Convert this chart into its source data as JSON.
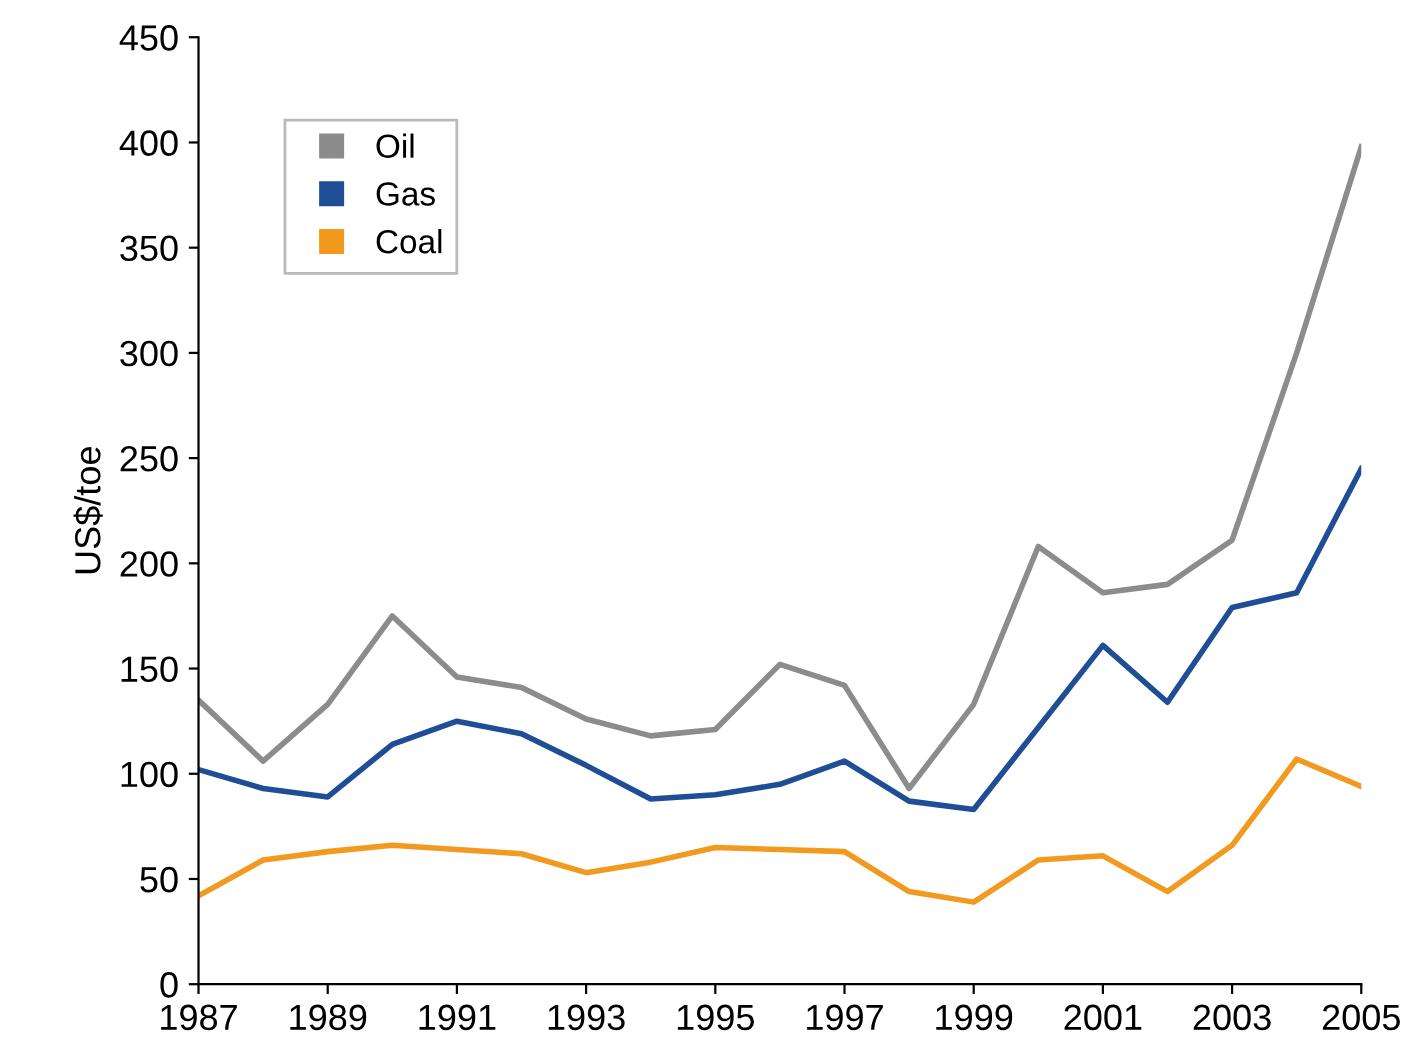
{
  "chart_data": {
    "type": "line",
    "ylabel": "US$/toe",
    "x": [
      1987,
      1988,
      1989,
      1990,
      1991,
      1992,
      1993,
      1994,
      1995,
      1996,
      1997,
      1998,
      1999,
      2000,
      2001,
      2002,
      2003,
      2004,
      2005
    ],
    "series": [
      {
        "name": "Oil",
        "color": "#8c8c8c",
        "values": [
          135,
          106,
          133,
          175,
          146,
          141,
          126,
          118,
          121,
          152,
          142,
          93,
          133,
          208,
          186,
          190,
          211,
          300,
          398
        ]
      },
      {
        "name": "Gas",
        "color": "#1f4e96",
        "values": [
          102,
          93,
          89,
          114,
          125,
          119,
          104,
          88,
          90,
          95,
          106,
          87,
          83,
          122,
          161,
          134,
          179,
          186,
          245
        ]
      },
      {
        "name": "Coal",
        "color": "#f29a1f",
        "values": [
          42,
          59,
          63,
          66,
          64,
          62,
          53,
          58,
          65,
          64,
          63,
          44,
          39,
          59,
          61,
          44,
          66,
          107,
          94
        ]
      }
    ],
    "xlim": [
      1987,
      2005
    ],
    "xticks": [
      1987,
      1989,
      1991,
      1993,
      1995,
      1997,
      1999,
      2001,
      2003,
      2005
    ],
    "ylim": [
      0,
      450
    ],
    "yticks": [
      0,
      50,
      100,
      150,
      200,
      250,
      300,
      350,
      400,
      450
    ],
    "legend": "top left",
    "grid": false
  }
}
